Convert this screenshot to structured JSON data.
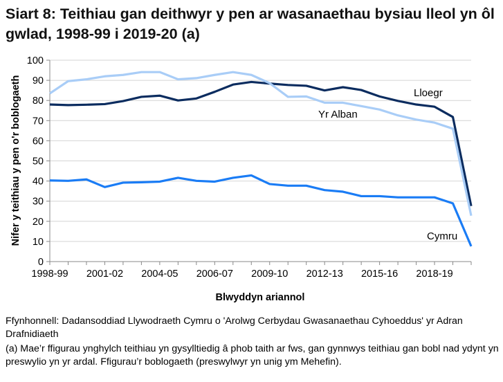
{
  "chart_data": {
    "type": "line",
    "title": "Siart 8: Teithiau gan deithwyr y pen ar wasanaethau bysiau lleol yn ôl gwlad, 1998-99 i 2019-20 (a)",
    "xlabel": "Blwyddyn ariannol",
    "ylabel": "Nifer y teithiau y pen o'r boblogaeth",
    "ylim": [
      0,
      100
    ],
    "yticks": [
      0,
      10,
      20,
      30,
      40,
      50,
      60,
      70,
      80,
      90,
      100
    ],
    "grid": true,
    "categories": [
      "1998-99",
      "",
      "",
      "2001-02",
      "",
      "",
      "2004-05",
      "",
      "",
      "2006-07",
      "",
      "",
      "2009-10",
      "",
      "",
      "2012-13",
      "",
      "",
      "2015-16",
      "",
      "",
      "2018-19",
      "",
      ""
    ],
    "series": [
      {
        "name": "Lloegr",
        "color": "#0b2c5f",
        "values": [
          78.0,
          77.7,
          77.9,
          78.2,
          79.7,
          81.8,
          82.4,
          80.0,
          81.0,
          84.3,
          87.9,
          89.2,
          88.4,
          87.7,
          87.3,
          85.0,
          86.6,
          85.2,
          82.0,
          79.8,
          78.0,
          76.9,
          71.8,
          27.6
        ]
      },
      {
        "name": "Yr Alban",
        "color": "#a9cdf7",
        "values": [
          83.5,
          89.6,
          90.5,
          92.0,
          92.7,
          94.1,
          94.1,
          90.5,
          91.1,
          92.7,
          94.1,
          92.7,
          88.6,
          81.8,
          82.0,
          78.9,
          78.9,
          77.2,
          75.5,
          72.6,
          70.5,
          69.0,
          66.0,
          22.8
        ]
      },
      {
        "name": "Cymru",
        "color": "#1a7cf5",
        "values": [
          40.3,
          40.1,
          40.8,
          37.0,
          39.2,
          39.4,
          39.7,
          41.6,
          40.1,
          39.7,
          41.6,
          42.8,
          38.5,
          37.7,
          37.7,
          35.5,
          34.7,
          32.5,
          32.5,
          31.9,
          31.9,
          31.9,
          28.9,
          7.6
        ]
      }
    ]
  },
  "source": "Ffynhonnell: Dadansoddiad Llywodraeth Cymru o 'Arolwg Cerbydau Gwasanaethau Cyhoeddus' yr Adran Drafnidiaeth",
  "note": "(a) Mae’r ffigurau ynghylch teithiau yn gysylltiedig â phob taith ar fws, gan gynnwys teithiau gan bobl nad ydynt yn preswylio yn yr ardal. Ffigurau’r boblogaeth (preswylwyr yn unig ym Mehefin)."
}
